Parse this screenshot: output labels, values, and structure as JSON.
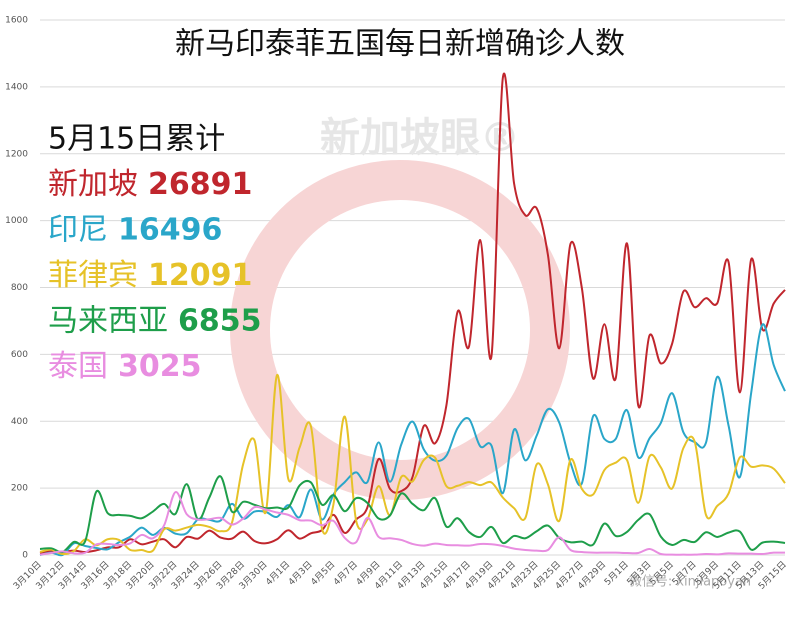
{
  "chart_data": {
    "type": "line",
    "title": "新马印泰菲五国每日新增确诊人数",
    "legend_heading": "5月15日累计",
    "watermark": "新加坡眼®",
    "footer": "微信号: xinjiapoyan",
    "categories": [
      "3月10日",
      null,
      "3月12日",
      null,
      "3月14日",
      null,
      "3月16日",
      null,
      "3月18日",
      null,
      "3月20日",
      null,
      "3月22日",
      null,
      "3月24日",
      null,
      "3月26日",
      null,
      "3月28日",
      null,
      "3月30日",
      null,
      "4月1日",
      null,
      "4月3日",
      null,
      "4月5日",
      null,
      "4月7日",
      null,
      "4月9日",
      null,
      "4月11日",
      null,
      "4月13日",
      null,
      "4月15日",
      null,
      "4月17日",
      null,
      "4月19日",
      null,
      "4月21日",
      null,
      "4月23日",
      null,
      "4月25日",
      null,
      "4月27日",
      null,
      "4月29日",
      null,
      "5月1日",
      null,
      "5月3日",
      null,
      "5月5日",
      null,
      "5月7日",
      null,
      "5月9日",
      null,
      "5月11日",
      null,
      "5月13日",
      null,
      "5月15日"
    ],
    "ylim": [
      0,
      1600
    ],
    "yticks": [
      0,
      200,
      400,
      600,
      800,
      1000,
      1200,
      1400,
      1600
    ],
    "grid": true,
    "series": [
      {
        "name": "新加坡",
        "total": 26891,
        "color": "#c0262d",
        "values": [
          6,
          12,
          9,
          13,
          9,
          14,
          23,
          23,
          47,
          32,
          40,
          47,
          23,
          54,
          49,
          73,
          52,
          49,
          70,
          42,
          35,
          47,
          74,
          49,
          65,
          75,
          120,
          66,
          106,
          142,
          287,
          198,
          191,
          233,
          386,
          334,
          447,
          728,
          623,
          942,
          596,
          1426,
          1111,
          1016,
          1037,
          897,
          618,
          931,
          799,
          528,
          690,
          528,
          932,
          447,
          657,
          573,
          632,
          788,
          741,
          768,
          753,
          876,
          486,
          884,
          675,
          752,
          793
        ]
      },
      {
        "name": "印尼",
        "total": 16496,
        "color": "#2aa6c9",
        "values": [
          0,
          7,
          0,
          35,
          27,
          21,
          17,
          38,
          55,
          82,
          60,
          81,
          64,
          65,
          107,
          105,
          103,
          153,
          109,
          130,
          129,
          114,
          149,
          113,
          196,
          106,
          181,
          218,
          247,
          218,
          337,
          219,
          330,
          399,
          316,
          282,
          297,
          380,
          407,
          325,
          327,
          185,
          375,
          283,
          357,
          436,
          396,
          275,
          214,
          415,
          347,
          347,
          433,
          292,
          349,
          395,
          484,
          367,
          338,
          336,
          533,
          387,
          233,
          484,
          689,
          568,
          490
        ]
      },
      {
        "name": "菲律宾",
        "total": 12091,
        "color": "#e6c228",
        "values": [
          9,
          16,
          3,
          12,
          47,
          29,
          47,
          45,
          15,
          15,
          13,
          77,
          73,
          82,
          90,
          84,
          71,
          96,
          272,
          343,
          128,
          538,
          227,
          322,
          385,
          76,
          152,
          414,
          104,
          106,
          206,
          119,
          233,
          220,
          284,
          291,
          206,
          207,
          218,
          209,
          217,
          172,
          140,
          111,
          271,
          211,
          102,
          285,
          198,
          181,
          254,
          276,
          284,
          156,
          295,
          262,
          199,
          320,
          339,
          120,
          147,
          184,
          292,
          264,
          268,
          258,
          215
        ]
      },
      {
        "name": "马来西亚",
        "total": 6855,
        "color": "#1e9e4a",
        "values": [
          18,
          20,
          9,
          39,
          41,
          190,
          125,
          120,
          117,
          110,
          130,
          153,
          123,
          212,
          106,
          172,
          235,
          130,
          159,
          150,
          140,
          142,
          142,
          208,
          217,
          150,
          179,
          131,
          170,
          156,
          109,
          118,
          184,
          153,
          134,
          170,
          85,
          110,
          69,
          54,
          84,
          36,
          57,
          50,
          71,
          88,
          51,
          38,
          40,
          31,
          94,
          57,
          69,
          105,
          122,
          55,
          30,
          45,
          39,
          68,
          54,
          67,
          70,
          16,
          37,
          40,
          36
        ]
      },
      {
        "name": "泰国",
        "total": 3025,
        "color": "#e88de0",
        "values": [
          1,
          6,
          11,
          5,
          7,
          32,
          33,
          30,
          35,
          60,
          50,
          89,
          188,
          122,
          106,
          107,
          111,
          91,
          109,
          143,
          136,
          127,
          120,
          104,
          103,
          89,
          102,
          51,
          38,
          111,
          54,
          50,
          45,
          33,
          28,
          34,
          30,
          29,
          28,
          33,
          32,
          27,
          19,
          15,
          13,
          15,
          53,
          15,
          9,
          7,
          7,
          7,
          6,
          6,
          18,
          3,
          1,
          1,
          1,
          3,
          2,
          5,
          4,
          4,
          3,
          7,
          7
        ]
      }
    ]
  }
}
